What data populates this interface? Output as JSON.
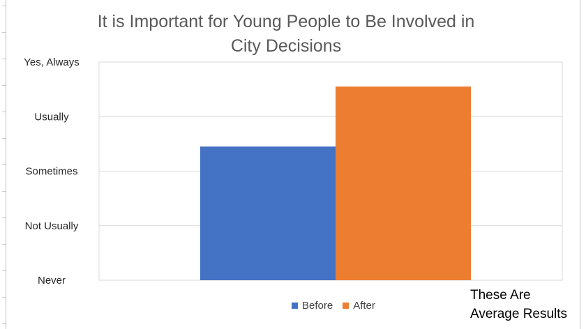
{
  "chart_data": {
    "type": "bar",
    "title": "It is Important for Young People to Be Involved in City Decisions",
    "categories": [
      ""
    ],
    "series": [
      {
        "name": "Before",
        "values": [
          2.45
        ],
        "color": "#4472C4"
      },
      {
        "name": "After",
        "values": [
          3.55
        ],
        "color": "#ED7D31"
      }
    ],
    "yticks": [
      "Never",
      "Not Usually",
      "Sometimes",
      "Usually",
      "Yes, Always"
    ],
    "ylim": [
      0,
      4
    ],
    "grid": true,
    "legend": "bottom",
    "annotation": "These Are Average Results"
  }
}
